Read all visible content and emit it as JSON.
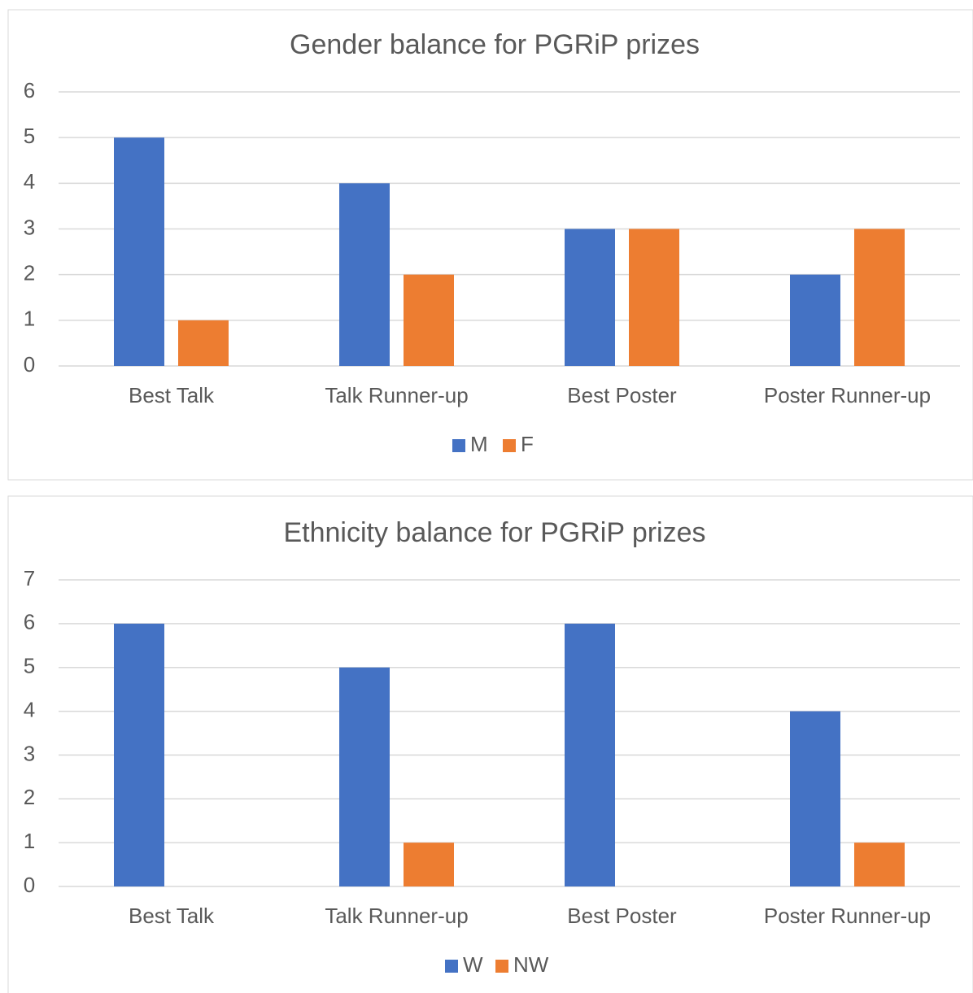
{
  "chart_data": [
    {
      "type": "bar",
      "title": "Gender balance for PGRiP prizes",
      "categories": [
        "Best Talk",
        "Talk Runner-up",
        "Best Poster",
        "Poster Runner-up"
      ],
      "series": [
        {
          "name": "M",
          "color": "#4472c4",
          "values": [
            5,
            4,
            3,
            2
          ]
        },
        {
          "name": "F",
          "color": "#ed7d31",
          "values": [
            1,
            2,
            3,
            3
          ]
        }
      ],
      "ylim": [
        0,
        6
      ],
      "yticks": [
        0,
        1,
        2,
        3,
        4,
        5,
        6
      ],
      "grid": true,
      "legend": "bottom"
    },
    {
      "type": "bar",
      "title": "Ethnicity balance for PGRiP prizes",
      "categories": [
        "Best Talk",
        "Talk Runner-up",
        "Best Poster",
        "Poster Runner-up"
      ],
      "series": [
        {
          "name": "W",
          "color": "#4472c4",
          "values": [
            6,
            5,
            6,
            4
          ]
        },
        {
          "name": "NW",
          "color": "#ed7d31",
          "values": [
            0,
            1,
            0,
            1
          ]
        }
      ],
      "ylim": [
        0,
        7
      ],
      "yticks": [
        0,
        1,
        2,
        3,
        4,
        5,
        6,
        7
      ],
      "grid": true,
      "legend": "bottom"
    }
  ]
}
